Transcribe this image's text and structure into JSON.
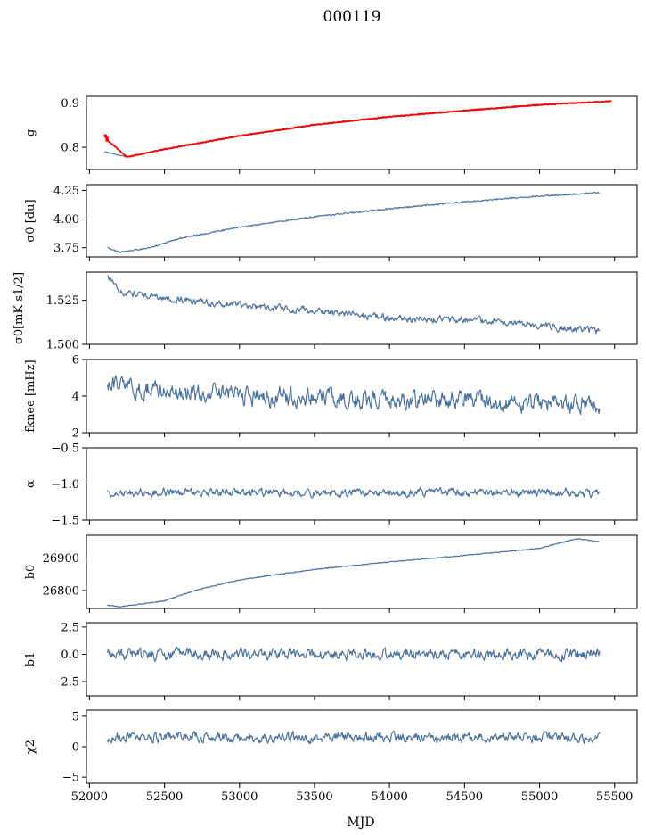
{
  "figure": {
    "suptitle": "000119",
    "xlabel": "MJD",
    "xlim": [
      51980,
      55650
    ],
    "xticks": [
      52000,
      52500,
      53000,
      53500,
      54000,
      54500,
      55000,
      55500
    ],
    "xtick_labels": [
      "52000",
      "52500",
      "53000",
      "53500",
      "54000",
      "54500",
      "55000",
      "55500"
    ]
  },
  "chart_data": [
    {
      "type": "line",
      "panel": "g",
      "ylabel": "g",
      "ylim": [
        0.75,
        0.915
      ],
      "yticks": [
        0.8,
        0.9
      ],
      "ytick_labels": [
        "0.8",
        "0.9"
      ],
      "x_range": [
        52100,
        55400
      ],
      "series": [
        {
          "color": "#4c72a0",
          "x": [
            52100,
            52250,
            52500,
            53000,
            53500,
            54000,
            54500,
            55000,
            55400
          ],
          "values": [
            0.79,
            0.778,
            0.795,
            0.825,
            0.85,
            0.868,
            0.882,
            0.895,
            0.903
          ]
        },
        {
          "color": "#ff0000",
          "x": [
            52100,
            52250,
            52500,
            53000,
            53500,
            54000,
            54500,
            55000,
            55480
          ],
          "values": [
            0.822,
            0.778,
            0.796,
            0.826,
            0.851,
            0.869,
            0.883,
            0.896,
            0.904
          ]
        }
      ]
    },
    {
      "type": "line",
      "panel": "sigma0_du",
      "ylabel": "σ0 [du]",
      "ylim": [
        3.67,
        4.3
      ],
      "yticks": [
        3.75,
        4.0,
        4.25
      ],
      "ytick_labels": [
        "3.75",
        "4.00",
        "4.25"
      ],
      "x_range": [
        52120,
        55400
      ],
      "series": [
        {
          "color": "#4c72a0",
          "x": [
            52120,
            52200,
            52400,
            52600,
            53000,
            53500,
            54000,
            54500,
            55000,
            55400
          ],
          "values": [
            3.75,
            3.71,
            3.75,
            3.83,
            3.93,
            4.02,
            4.09,
            4.15,
            4.2,
            4.23
          ]
        }
      ]
    },
    {
      "type": "line",
      "panel": "sigma0_mk",
      "ylabel": "σ0[mK s1/2]",
      "ylim": [
        1.5,
        1.541
      ],
      "yticks": [
        1.5,
        1.525
      ],
      "ytick_labels": [
        "1.500",
        "1.525"
      ],
      "x_range": [
        52120,
        55400
      ],
      "series": [
        {
          "color": "#4c72a0",
          "x": [
            52120,
            52200,
            52500,
            53000,
            53500,
            54000,
            54500,
            55000,
            55400
          ],
          "values": [
            1.538,
            1.53,
            1.526,
            1.522,
            1.519,
            1.515,
            1.514,
            1.511,
            1.507
          ]
        }
      ]
    },
    {
      "type": "line",
      "panel": "fknee",
      "ylabel": "fknee [mHz]",
      "ylim": [
        2,
        6
      ],
      "yticks": [
        2,
        4,
        6
      ],
      "ytick_labels": [
        "2",
        "4",
        "6"
      ],
      "x_range": [
        52120,
        55400
      ],
      "series": [
        {
          "color": "#4c72a0",
          "x": [
            52120,
            52500,
            53000,
            53500,
            54000,
            54500,
            55000,
            55400
          ],
          "values": [
            4.6,
            4.3,
            4.0,
            3.9,
            3.8,
            3.7,
            3.6,
            3.5
          ]
        }
      ]
    },
    {
      "type": "line",
      "panel": "alpha",
      "ylabel": "α",
      "ylim": [
        -1.5,
        -0.5
      ],
      "yticks": [
        -1.5,
        -1.0,
        -0.5
      ],
      "ytick_labels": [
        "−1.5",
        "−1.0",
        "−0.5"
      ],
      "x_range": [
        52120,
        55400
      ],
      "series": [
        {
          "color": "#4c72a0",
          "x": [
            52120,
            55400
          ],
          "values": [
            -1.12,
            -1.12
          ]
        }
      ]
    },
    {
      "type": "line",
      "panel": "b0",
      "ylabel": "b0",
      "ylim": [
        26745,
        26970
      ],
      "yticks": [
        26800,
        26900
      ],
      "ytick_labels": [
        "26800",
        "26900"
      ],
      "x_range": [
        52120,
        55400
      ],
      "series": [
        {
          "color": "#4c72a0",
          "x": [
            52120,
            52200,
            52500,
            52700,
            53000,
            53500,
            54000,
            54500,
            55000,
            55250,
            55400
          ],
          "values": [
            26755,
            26750,
            26768,
            26800,
            26833,
            26865,
            26888,
            26908,
            26930,
            26960,
            26950
          ]
        }
      ]
    },
    {
      "type": "line",
      "panel": "b1",
      "ylabel": "b1",
      "ylim": [
        -3.8,
        2.9
      ],
      "yticks": [
        -2.5,
        0.0,
        2.5
      ],
      "ytick_labels": [
        "−2.5",
        "0.0",
        "2.5"
      ],
      "x_range": [
        52120,
        55400
      ],
      "series": [
        {
          "color": "#4c72a0",
          "x": [
            52120,
            55400
          ],
          "values": [
            0.0,
            0.0
          ]
        }
      ]
    },
    {
      "type": "line",
      "panel": "chi2",
      "ylabel": "χ2",
      "ylim": [
        -6,
        6
      ],
      "yticks": [
        -5,
        0,
        5
      ],
      "ytick_labels": [
        "−5",
        "0",
        "5"
      ],
      "x_range": [
        52120,
        55400
      ],
      "series": [
        {
          "color": "#4c72a0",
          "x": [
            52120,
            55400
          ],
          "values": [
            1.5,
            1.5
          ]
        }
      ]
    }
  ]
}
